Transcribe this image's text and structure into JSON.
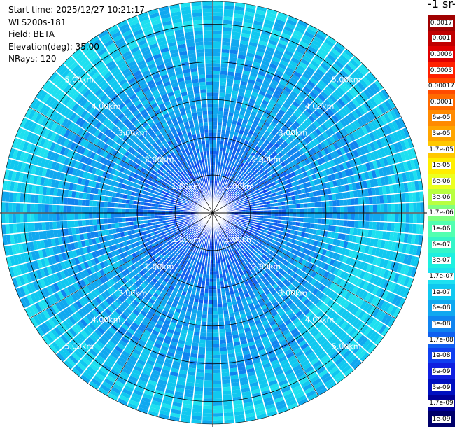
{
  "header": {
    "start_time": "Start time: 2025/12/27 10:21:17",
    "instrument": "WLS200s-181",
    "field": "Field: BETA",
    "elevation": "Elevation(deg): 35.00",
    "nrays": "NRays: 120"
  },
  "colorbar": {
    "units_label": "-1 sr-",
    "labels": [
      "0.0017",
      "0.001",
      "0.0006",
      "0.0003",
      "0.00017",
      "0.0001",
      "6e-05",
      "3e-05",
      "1.7e-05",
      "1e-05",
      "6e-06",
      "3e-06",
      "1.7e-06",
      "1e-06",
      "6e-07",
      "3e-07",
      "1.7e-07",
      "1e-07",
      "6e-08",
      "3e-08",
      "1.7e-08",
      "1e-08",
      "6e-09",
      "3e-09",
      "1.7e-09",
      "1e-09"
    ],
    "colors": [
      "#a00000",
      "#c00000",
      "#e00000",
      "#ff2000",
      "#ff4a00",
      "#ff6a00",
      "#ff8a00",
      "#ffa500",
      "#ffc800",
      "#ffee00",
      "#ecff20",
      "#b8ff40",
      "#80ff80",
      "#52ffb0",
      "#34f5c8",
      "#1ef0e0",
      "#1ee0f0",
      "#10c8f0",
      "#10a8f0",
      "#1084f0",
      "#1060f0",
      "#1040f0",
      "#1020e0",
      "#0010c0",
      "#000098",
      "#00006a"
    ]
  },
  "chart_data": {
    "type": "heatmap",
    "projection": "polar PPI",
    "title": "",
    "nrays": 120,
    "range_rings_km": [
      1,
      2,
      3,
      4,
      5
    ],
    "range_ring_labels": [
      "1.00km",
      "2.00km",
      "3.00km",
      "4.00km",
      "5.00km"
    ],
    "max_range_km": 5.6,
    "spokes_deg": [
      0,
      30,
      60,
      90,
      120,
      150,
      180,
      210,
      240,
      270,
      300,
      330
    ],
    "value_bins": [
      "1e-09",
      "1.7e-09",
      "3e-09",
      "6e-09",
      "1e-08",
      "1.7e-08",
      "3e-08",
      "6e-08",
      "1e-07",
      "1.7e-07"
    ],
    "radial_profile": [
      {
        "range_km": 0.5,
        "dominant_bin": "1e-08"
      },
      {
        "range_km": 1.0,
        "dominant_bin": "1.7e-08"
      },
      {
        "range_km": 2.0,
        "dominant_bin": "3e-08"
      },
      {
        "range_km": 3.0,
        "dominant_bin": "6e-08"
      },
      {
        "range_km": 4.0,
        "dominant_bin": "6e-08"
      },
      {
        "range_km": 5.0,
        "dominant_bin": "1e-07"
      }
    ],
    "highlights": [
      {
        "azimuth_deg": 120,
        "range_km": 4.3,
        "value": "1.7e-07"
      },
      {
        "azimuth_deg": 300,
        "range_km": 5.2,
        "value": "1.7e-07"
      }
    ]
  }
}
